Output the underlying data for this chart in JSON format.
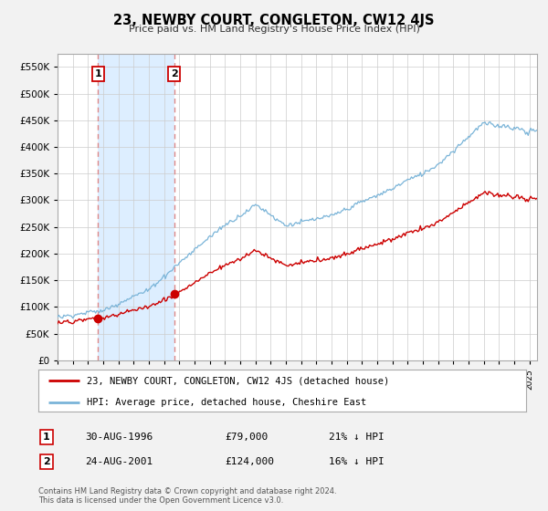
{
  "title": "23, NEWBY COURT, CONGLETON, CW12 4JS",
  "subtitle": "Price paid vs. HM Land Registry's House Price Index (HPI)",
  "ylim": [
    0,
    575000
  ],
  "yticks": [
    0,
    50000,
    100000,
    150000,
    200000,
    250000,
    300000,
    350000,
    400000,
    450000,
    500000,
    550000
  ],
  "xlim_start": 1994.0,
  "xlim_end": 2025.5,
  "sale1_x": 1996.667,
  "sale1_y": 79000,
  "sale1_label": "1",
  "sale1_date": "30-AUG-1996",
  "sale1_price": "£79,000",
  "sale1_hpi": "21% ↓ HPI",
  "sale2_x": 2001.667,
  "sale2_y": 124000,
  "sale2_label": "2",
  "sale2_date": "24-AUG-2001",
  "sale2_price": "£124,000",
  "sale2_hpi": "16% ↓ HPI",
  "hpi_color": "#7ab4d8",
  "price_color": "#cc0000",
  "legend_entry1": "23, NEWBY COURT, CONGLETON, CW12 4JS (detached house)",
  "legend_entry2": "HPI: Average price, detached house, Cheshire East",
  "footer": "Contains HM Land Registry data © Crown copyright and database right 2024.\nThis data is licensed under the Open Government Licence v3.0.",
  "bg_color": "#f2f2f2",
  "plot_bg_color": "#ffffff",
  "grid_color": "#cccccc",
  "shade_color": "#ddeeff",
  "dashed_color": "#dd8888"
}
